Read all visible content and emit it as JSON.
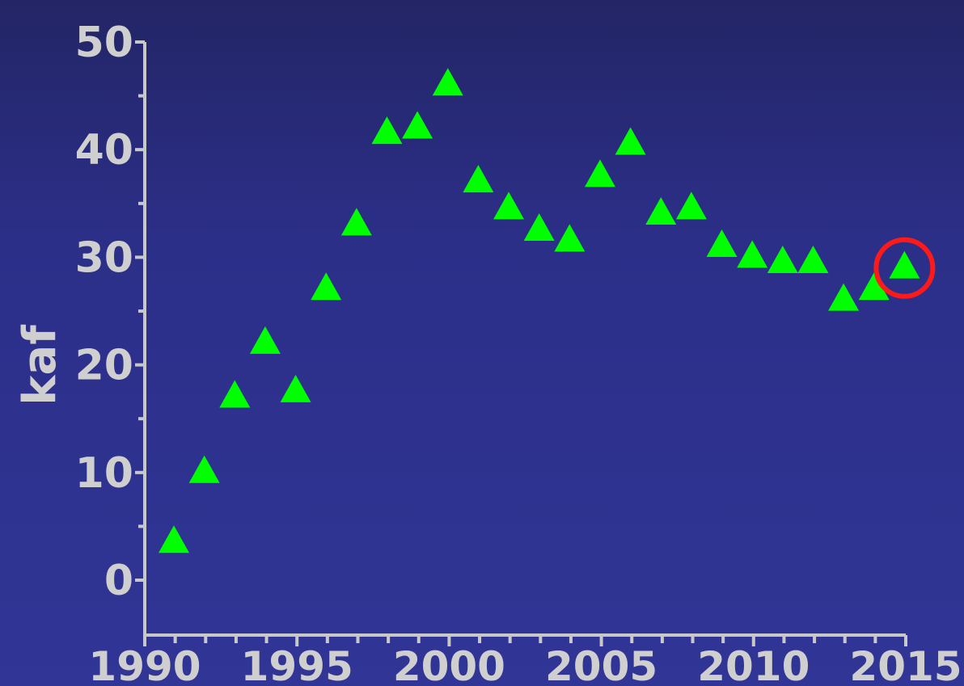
{
  "chart_data": {
    "type": "scatter",
    "title": "",
    "xlabel": "",
    "ylabel": "kaf",
    "xlim": [
      1990,
      2015
    ],
    "ylim": [
      -5,
      50
    ],
    "x_ticks": [
      1990,
      1995,
      2000,
      2005,
      2010,
      2015
    ],
    "y_ticks": [
      0,
      10,
      20,
      30,
      40,
      50
    ],
    "marker": "triangle",
    "marker_color": "#00ff00",
    "highlight_color": "#ff1a1a",
    "axis_color": "#c8c8c8",
    "grid": false,
    "series": [
      {
        "x": [
          1990,
          1991,
          1992,
          1993,
          1994,
          1995,
          1996,
          1997,
          1998,
          1999,
          2000,
          2001,
          2002,
          2003,
          2004,
          2005,
          2006,
          2007,
          2008,
          2009,
          2010,
          2011,
          2012,
          2013,
          2014
        ],
        "y": [
          3.5,
          10,
          17,
          22,
          17.5,
          27,
          33,
          41.5,
          42,
          46,
          37,
          34.5,
          32.5,
          31.5,
          37.5,
          40.5,
          34,
          34.5,
          31,
          30,
          29.5,
          29.5,
          26,
          27,
          29
        ]
      }
    ],
    "highlighted_point": {
      "x": 2014,
      "y": 29
    }
  }
}
